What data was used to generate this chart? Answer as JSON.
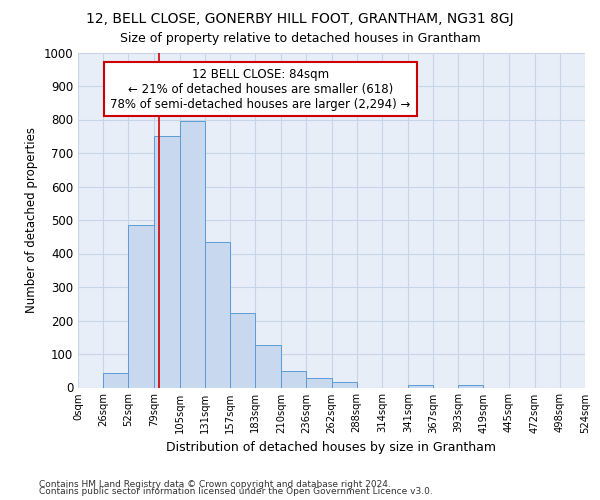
{
  "title": "12, BELL CLOSE, GONERBY HILL FOOT, GRANTHAM, NG31 8GJ",
  "subtitle": "Size of property relative to detached houses in Grantham",
  "xlabel": "Distribution of detached houses by size in Grantham",
  "ylabel": "Number of detached properties",
  "bar_values": [
    0,
    42,
    484,
    750,
    797,
    433,
    221,
    127,
    48,
    29,
    16,
    0,
    0,
    8,
    0,
    8,
    0,
    0,
    0,
    0
  ],
  "bin_labels": [
    "0sqm",
    "26sqm",
    "52sqm",
    "79sqm",
    "105sqm",
    "131sqm",
    "157sqm",
    "183sqm",
    "210sqm",
    "236sqm",
    "262sqm",
    "288sqm",
    "314sqm",
    "341sqm",
    "367sqm",
    "393sqm",
    "419sqm",
    "445sqm",
    "472sqm",
    "498sqm",
    "524sqm"
  ],
  "bar_color": "#c8d9ef",
  "bar_edge_color": "#5b9bd5",
  "grid_color": "#c8d4e8",
  "background_color": "#e8eef8",
  "vline_x": 84,
  "vline_color": "#cc0000",
  "annotation_text": "12 BELL CLOSE: 84sqm\n← 21% of detached houses are smaller (618)\n78% of semi-detached houses are larger (2,294) →",
  "annotation_box_color": "#ffffff",
  "annotation_box_edge": "#cc0000",
  "ylim": [
    0,
    1000
  ],
  "yticks": [
    0,
    100,
    200,
    300,
    400,
    500,
    600,
    700,
    800,
    900,
    1000
  ],
  "footnote1": "Contains HM Land Registry data © Crown copyright and database right 2024.",
  "footnote2": "Contains public sector information licensed under the Open Government Licence v3.0.",
  "bin_edges": [
    0,
    26,
    52,
    79,
    105,
    131,
    157,
    183,
    210,
    236,
    262,
    288,
    314,
    341,
    367,
    393,
    419,
    445,
    472,
    498,
    524
  ]
}
